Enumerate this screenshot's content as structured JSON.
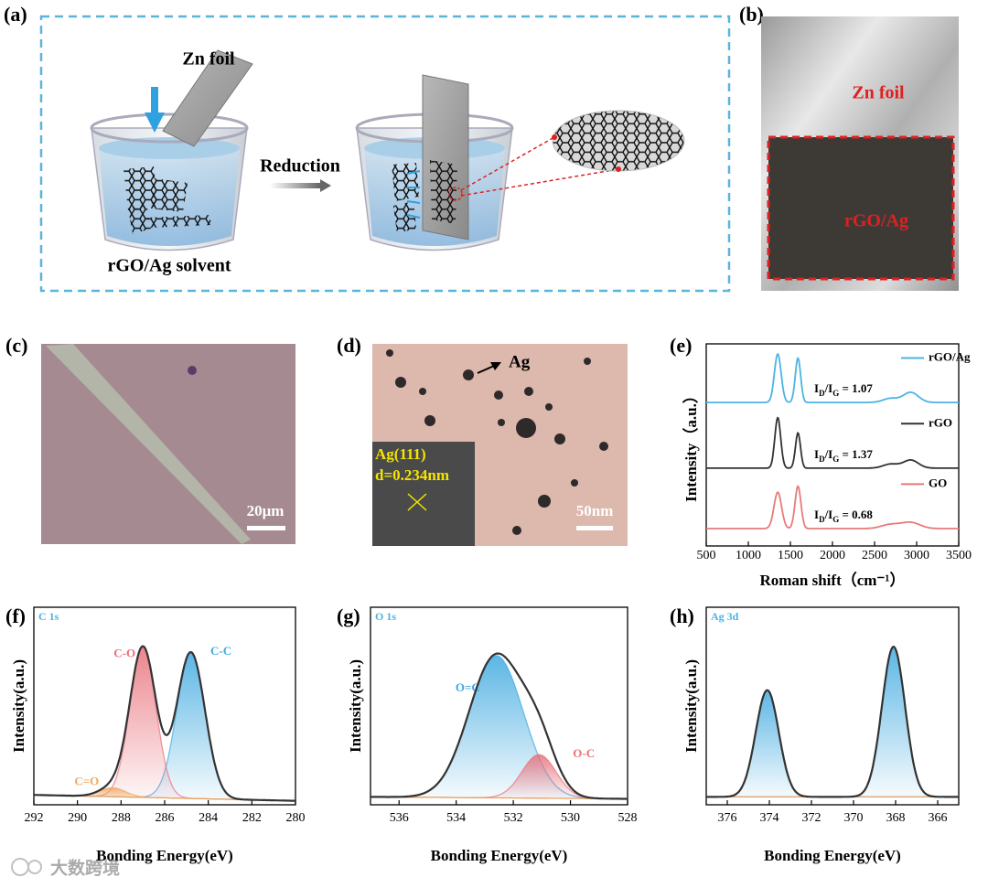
{
  "panels": {
    "a": {
      "label": "(a)",
      "zn_foil": "Zn foil",
      "reduction": "Reduction",
      "solvent": "rGO/Ag solvent"
    },
    "b": {
      "label": "(b)",
      "zn_foil": "Zn foil",
      "rgo_ag": "rGO/Ag"
    },
    "c": {
      "label": "(c)",
      "scale": "20μm"
    },
    "d": {
      "label": "(d)",
      "ag": "Ag",
      "plane": "Ag(111)",
      "spacing": "d=0.234nm",
      "scale": "50nm"
    }
  },
  "watermark": "大数跨境",
  "chart_data": [
    {
      "type": "line",
      "panel": "(e)",
      "xlabel": "Roman shift（cm⁻¹）",
      "ylabel": "Intensity（a.u.）",
      "xlim": [
        500,
        3500
      ],
      "xticks": [
        500,
        1000,
        1500,
        2000,
        2500,
        3000,
        3500
      ],
      "ylim": [
        0,
        100
      ],
      "series": [
        {
          "name": "rGO/Ag",
          "color": "#4cb3e3",
          "offset": 71,
          "peaks": [
            {
              "center": 1350,
              "height": 24,
              "width": 40
            },
            {
              "center": 1590,
              "height": 22,
              "width": 32
            },
            {
              "center": 2690,
              "height": 2,
              "width": 90
            },
            {
              "center": 2930,
              "height": 5,
              "width": 90
            }
          ],
          "ratio_label": [
            "I",
            "D",
            "/I",
            "G",
            " = 1.07"
          ]
        },
        {
          "name": "rGO",
          "color": "#333333",
          "offset": 38.5,
          "peaks": [
            {
              "center": 1350,
              "height": 25,
              "width": 35
            },
            {
              "center": 1590,
              "height": 17.5,
              "width": 30
            },
            {
              "center": 2690,
              "height": 2,
              "width": 90
            },
            {
              "center": 2930,
              "height": 4,
              "width": 90
            }
          ],
          "ratio_label": [
            "I",
            "D",
            "/I",
            "G",
            " = 1.37"
          ]
        },
        {
          "name": "GO",
          "color": "#e87a7a",
          "offset": 8.6,
          "peaks": [
            {
              "center": 1350,
              "height": 18,
              "width": 45
            },
            {
              "center": 1590,
              "height": 21,
              "width": 35
            },
            {
              "center": 2690,
              "height": 2,
              "width": 110
            },
            {
              "center": 2930,
              "height": 3,
              "width": 110
            }
          ],
          "ratio_label": [
            "I",
            "D",
            "/I",
            "G",
            " = 0.68"
          ]
        }
      ]
    },
    {
      "type": "area",
      "panel": "(f)",
      "title": "C 1s",
      "xlabel": "Bonding Energy(eV)",
      "ylabel": "Intensity(a.u.)",
      "xlim": [
        292,
        280
      ],
      "xticks": [
        292,
        290,
        288,
        286,
        284,
        282,
        280
      ],
      "ylim": [
        0,
        100
      ],
      "baseline": [
        5,
        2
      ],
      "envelope_color": "#333333",
      "series": [
        {
          "name": "C-C",
          "color": "#3fa9e0",
          "center": 284.8,
          "height": 74,
          "width": 0.65
        },
        {
          "name": "C-O",
          "color": "#e8707a",
          "center": 287.0,
          "height": 76,
          "width": 0.6
        },
        {
          "name": "C=O",
          "color": "#f0a860",
          "center": 288.4,
          "height": 4.5,
          "width": 0.6
        }
      ]
    },
    {
      "type": "area",
      "panel": "(g)",
      "title": "O 1s",
      "xlabel": "Bonding Energy(eV)",
      "ylabel": "Intensity(a.u.)",
      "xlim": [
        537,
        528
      ],
      "xticks": [
        536,
        534,
        532,
        530,
        528
      ],
      "ylim": [
        0,
        100
      ],
      "baseline": [
        4,
        3
      ],
      "envelope_color": "#333333",
      "series": [
        {
          "name": "O=C",
          "color": "#3fa9e0",
          "center": 532.6,
          "height": 72,
          "width": 0.95
        },
        {
          "name": "O-C",
          "color": "#e8707a",
          "center": 531.1,
          "height": 22,
          "width": 0.6
        }
      ]
    },
    {
      "type": "area",
      "panel": "(h)",
      "title": "Ag 3d",
      "xlabel": "Bonding Energy(eV)",
      "ylabel": "Intensity(a.u.)",
      "xlim": [
        377,
        365
      ],
      "xticks": [
        376,
        374,
        372,
        370,
        368,
        366
      ],
      "ylim": [
        0,
        100
      ],
      "baseline": [
        4,
        4
      ],
      "envelope_color": "#333333",
      "series": [
        {
          "color": "#3fa9e0",
          "center": 374.1,
          "height": 54,
          "width": 0.55
        },
        {
          "color": "#3fa9e0",
          "center": 368.1,
          "height": 76,
          "width": 0.55
        }
      ]
    }
  ]
}
